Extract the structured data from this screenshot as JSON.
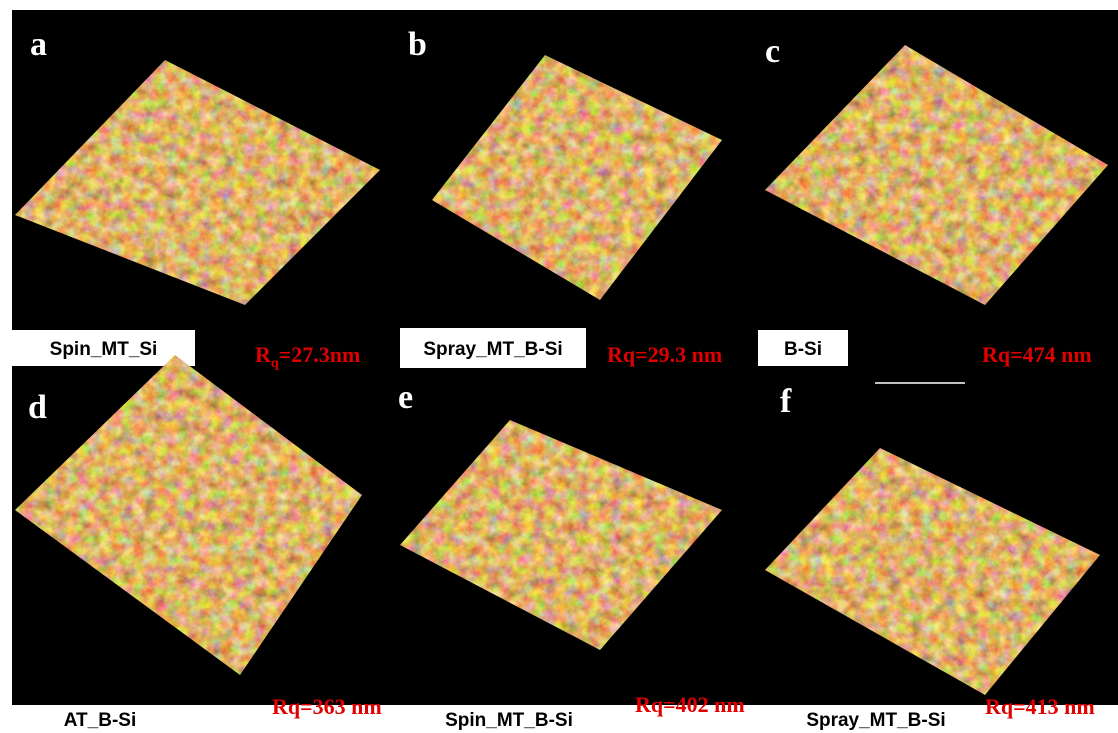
{
  "panels": [
    {
      "letter": "a",
      "sample": "Spin_MT_Si",
      "roughness": {
        "base": "R",
        "sub": "q",
        "rest": "=27.3nm"
      }
    },
    {
      "letter": "b",
      "sample": "Spray_MT_B-Si",
      "roughness": "Rq=29.3 nm"
    },
    {
      "letter": "c",
      "sample": "B-Si",
      "roughness": "Rq=474 nm"
    },
    {
      "letter": "d",
      "sample": "AT_B-Si",
      "roughness": "Rq=363 nm"
    },
    {
      "letter": "e",
      "sample": "Spin_MT_B-Si",
      "roughness": "Rq=402 nm"
    },
    {
      "letter": "f",
      "sample": "Spray_MT_B-Si",
      "roughness": "Rq=413 nm"
    }
  ]
}
